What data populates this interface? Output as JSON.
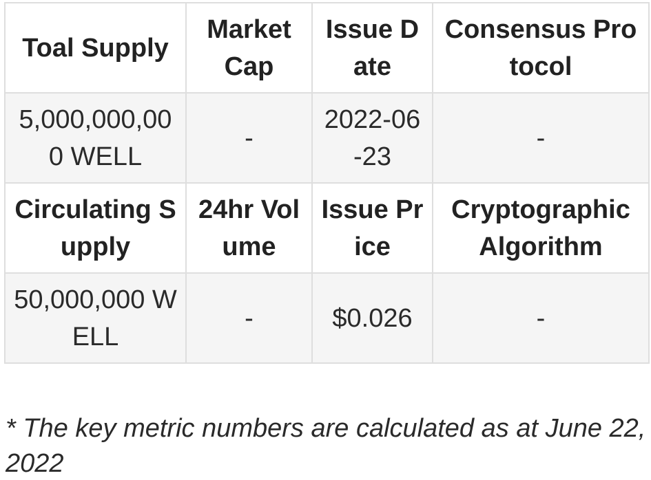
{
  "table": {
    "rows": [
      {
        "kind": "header",
        "cells": [
          "Toal Supply",
          "Market Cap",
          "Issue Date",
          "Consensus Protocol"
        ]
      },
      {
        "kind": "value",
        "cells": [
          "5,000,000,000 WELL",
          "-",
          "2022-06-23",
          "-"
        ]
      },
      {
        "kind": "header",
        "cells": [
          "Circulating Supply",
          "24hr Volume",
          "Issue Price",
          "Cryptographic Algorithm"
        ]
      },
      {
        "kind": "value",
        "cells": [
          "50,000,000 WELL",
          "-",
          "$0.026",
          "-"
        ]
      }
    ]
  },
  "footnote": "* The key metric numbers are calculated as at June 22, 2022"
}
